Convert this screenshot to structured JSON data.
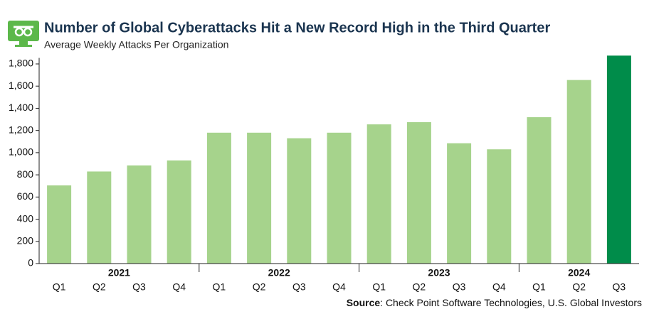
{
  "chart_data": {
    "type": "bar",
    "title": "Number of Global Cyberattacks Hit a New Record High in the Third Quarter",
    "subtitle": "Average Weekly Attacks Per Organization",
    "source_label": "Source",
    "source": ": Check Point Software Technologies, U.S. Global Investors",
    "groups": [
      {
        "name": "2021",
        "categories": [
          "Q1",
          "Q2",
          "Q3",
          "Q4"
        ]
      },
      {
        "name": "2022",
        "categories": [
          "Q1",
          "Q2",
          "Q3",
          "Q4"
        ]
      },
      {
        "name": "2023",
        "categories": [
          "Q1",
          "Q2",
          "Q3",
          "Q4"
        ]
      },
      {
        "name": "2024",
        "categories": [
          "Q1",
          "Q2",
          "Q3"
        ]
      }
    ],
    "values": [
      705,
      830,
      885,
      930,
      1180,
      1180,
      1130,
      1180,
      1255,
      1275,
      1085,
      1030,
      1320,
      1655,
      1875
    ],
    "colors": [
      "#a6d38c",
      "#a6d38c",
      "#a6d38c",
      "#a6d38c",
      "#a6d38c",
      "#a6d38c",
      "#a6d38c",
      "#a6d38c",
      "#a6d38c",
      "#a6d38c",
      "#a6d38c",
      "#a6d38c",
      "#a6d38c",
      "#a6d38c",
      "#008c4a"
    ],
    "ylim": [
      0,
      1880
    ],
    "yticks": [
      0,
      200,
      400,
      600,
      800,
      {
        "value": 1000,
        "label": "1,000"
      },
      {
        "value": 1200,
        "label": "1,200"
      },
      {
        "value": 1400,
        "label": "1,400"
      },
      {
        "value": 1600,
        "label": "1,600"
      },
      {
        "value": 1800,
        "label": "1,800"
      }
    ],
    "grid": false
  }
}
